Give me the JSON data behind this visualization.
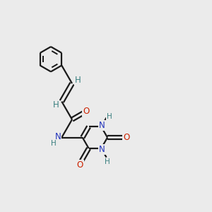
{
  "bg_color": "#ebebeb",
  "bond_color": "#1a1a1a",
  "n_color": "#2233bb",
  "o_color": "#cc2200",
  "h_color": "#3a8080",
  "lw": 1.6,
  "lw_inner": 1.4,
  "fs": 8.5,
  "dbo": 0.1,
  "fig_w": 3.0,
  "fig_h": 3.0,
  "dpi": 100,
  "xlim": [
    0,
    10
  ],
  "ylim": [
    0,
    10
  ]
}
